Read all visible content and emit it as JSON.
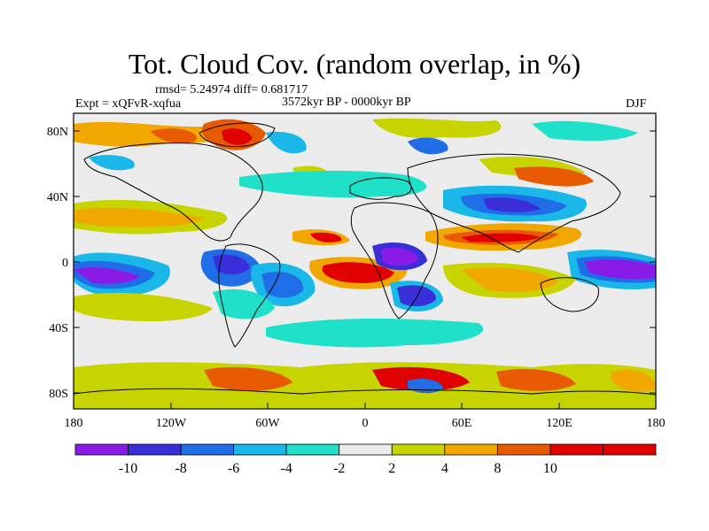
{
  "title": "Tot. Cloud Cov. (random overlap, in %)",
  "stats_line": "rmsd= 5.24974  diff= 0.681717",
  "experiment_label": "Expt = xQFvR-xqfua",
  "period_label": "3572kyr BP - 0000kyr BP",
  "season_label": "DJF",
  "lat_ticks": [
    "80N",
    "40N",
    "0",
    "40S",
    "80S"
  ],
  "lon_ticks": [
    "180",
    "120W",
    "60W",
    "0",
    "60E",
    "120E",
    "180"
  ],
  "colorbar": {
    "labels": [
      "-10",
      "-8",
      "-6",
      "-4",
      "-2",
      "2",
      "4",
      "8",
      "10"
    ],
    "colors": [
      "#8a1ae6",
      "#3a2ed9",
      "#1f6ee8",
      "#19b8e8",
      "#1fe0c8",
      "#ececec",
      "#c8d400",
      "#f0a800",
      "#e85a00",
      "#e00000",
      "#e00000"
    ]
  }
}
